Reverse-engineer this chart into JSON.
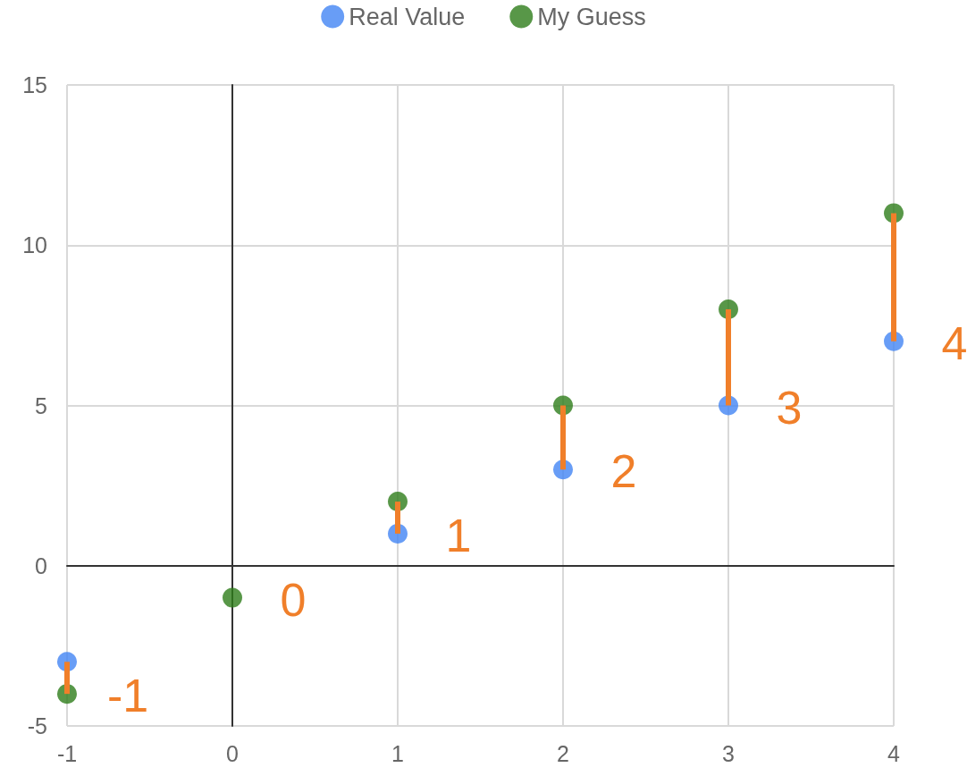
{
  "chart_data": {
    "type": "scatter",
    "x": [
      -1,
      0,
      1,
      2,
      3,
      4
    ],
    "series": [
      {
        "name": "Real Value",
        "color": "#4285f4",
        "values": [
          -3,
          null,
          1,
          3,
          5,
          7
        ]
      },
      {
        "name": "My Guess",
        "color": "#2e7d1a",
        "values": [
          -4,
          -1,
          2,
          5,
          8,
          11
        ]
      },
      {
        "type": "line",
        "marker": "none",
        "color": "#f07f2a",
        "x": [
          -1,
          -1
        ],
        "values": [
          -3,
          -4
        ]
      },
      {
        "type": "line",
        "marker": "none",
        "color": "#f07f2a",
        "x": [
          1,
          1
        ],
        "values": [
          1,
          2
        ]
      },
      {
        "type": "line",
        "marker": "none",
        "color": "#f07f2a",
        "x": [
          2,
          2
        ],
        "values": [
          3,
          5
        ]
      },
      {
        "type": "line",
        "marker": "none",
        "color": "#f07f2a",
        "x": [
          3,
          3
        ],
        "values": [
          5,
          8
        ]
      },
      {
        "type": "line",
        "marker": "none",
        "color": "#f07f2a",
        "x": [
          4,
          4
        ],
        "values": [
          7,
          11
        ]
      }
    ],
    "xlim": [
      -1,
      4
    ],
    "xticks": [
      -1,
      0,
      1,
      2,
      3,
      4
    ],
    "ylim": [
      -5,
      15
    ],
    "yticks": [
      -5,
      0,
      5,
      10,
      15
    ],
    "annotations": [
      {
        "text": "-1",
        "x": -1,
        "y": -4
      },
      {
        "text": "0",
        "x": 0,
        "y": -1
      },
      {
        "text": "1",
        "x": 1,
        "y": 1
      },
      {
        "text": "2",
        "x": 2,
        "y": 3
      },
      {
        "text": "3",
        "x": 3,
        "y": 5
      },
      {
        "text": "4",
        "x": 4,
        "y": 7
      }
    ],
    "grid": true,
    "legend": "top",
    "marker": "circle"
  }
}
